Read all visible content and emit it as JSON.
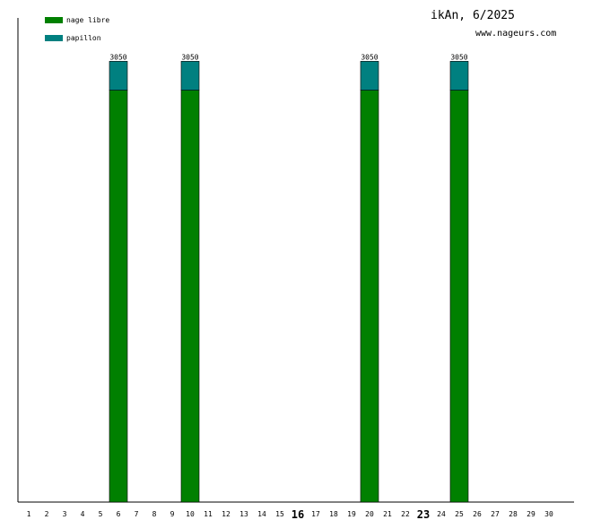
{
  "chart_data": {
    "type": "bar",
    "stacked": true,
    "title": "ikAn, 6/2025",
    "subtitle": "www.nageurs.com",
    "categories": [
      "1",
      "2",
      "3",
      "4",
      "5",
      "6",
      "7",
      "8",
      "9",
      "10",
      "11",
      "12",
      "13",
      "14",
      "15",
      "16",
      "17",
      "18",
      "19",
      "20",
      "21",
      "22",
      "23",
      "24",
      "25",
      "26",
      "27",
      "28",
      "29",
      "30"
    ],
    "highlighted_categories": [
      "16",
      "23"
    ],
    "series": [
      {
        "name": "nage libre",
        "color": "#008000",
        "values": [
          0,
          0,
          0,
          0,
          0,
          2850,
          0,
          0,
          0,
          2850,
          0,
          0,
          0,
          0,
          0,
          0,
          0,
          0,
          0,
          2850,
          0,
          0,
          0,
          0,
          2850,
          0,
          0,
          0,
          0,
          0
        ]
      },
      {
        "name": "papillon",
        "color": "#008080",
        "values": [
          0,
          0,
          0,
          0,
          0,
          200,
          0,
          0,
          0,
          200,
          0,
          0,
          0,
          0,
          0,
          0,
          0,
          0,
          0,
          200,
          0,
          0,
          0,
          0,
          200,
          0,
          0,
          0,
          0,
          0
        ]
      }
    ],
    "totals": [
      "",
      "",
      "",
      "",
      "",
      "3050",
      "",
      "",
      "",
      "3050",
      "",
      "",
      "",
      "",
      "",
      "",
      "",
      "",
      "",
      "3050",
      "",
      "",
      "",
      "",
      "3050",
      "",
      "",
      "",
      "",
      ""
    ],
    "ylim": [
      0,
      3350
    ],
    "legend_position": "top-left",
    "grid": false
  }
}
